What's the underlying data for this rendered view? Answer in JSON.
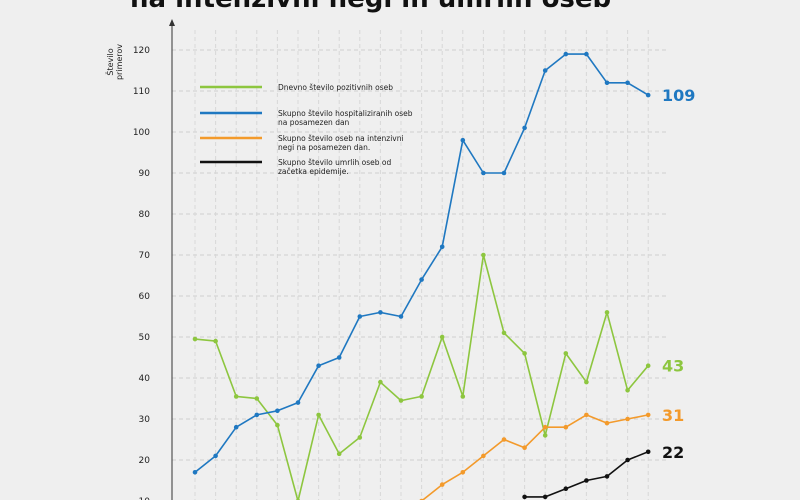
{
  "title": "na intenzivni negi in umrlih oseb",
  "chart_data": {
    "type": "line",
    "ylabel": "Število primerov",
    "ylim": [
      10,
      120
    ],
    "yticks": [
      10,
      20,
      30,
      40,
      50,
      60,
      70,
      80,
      90,
      100,
      110,
      120
    ],
    "grid": true,
    "legend_position": "top-left",
    "series": [
      {
        "name": "Dnevno število pozitivnih oseb",
        "color": "#8dc63f",
        "end_label": "43",
        "values": [
          49.5,
          49,
          35.5,
          35,
          28.5,
          10,
          31,
          21.5,
          25.5,
          39,
          34.5,
          35.5,
          50,
          35.5,
          70,
          51,
          46,
          26,
          46,
          39,
          56,
          37,
          43
        ]
      },
      {
        "name": "Skupno število hospitaliziranih oseb na posamezen dan",
        "color": "#1f78c1",
        "end_label": "109",
        "values": [
          17,
          21,
          28,
          31,
          32,
          34,
          43,
          45,
          55,
          56,
          55,
          64,
          72,
          98,
          90,
          90,
          101,
          115,
          119,
          119,
          112,
          112,
          109
        ]
      },
      {
        "name": "Skupno število oseb na intenzivni negi na posamezen dan.",
        "color": "#f39a2b",
        "end_label": "31",
        "values": [
          null,
          null,
          null,
          null,
          null,
          null,
          null,
          null,
          null,
          null,
          null,
          10,
          14,
          17,
          21,
          25,
          23,
          28,
          28,
          31,
          29,
          30,
          31
        ]
      },
      {
        "name": "Skupno število umrlih oseb od začetka epidemije.",
        "color": "#111111",
        "end_label": "22",
        "values": [
          null,
          null,
          null,
          null,
          null,
          null,
          null,
          null,
          null,
          null,
          null,
          null,
          null,
          null,
          null,
          null,
          11,
          11,
          13,
          15,
          16,
          20,
          22
        ]
      }
    ]
  }
}
